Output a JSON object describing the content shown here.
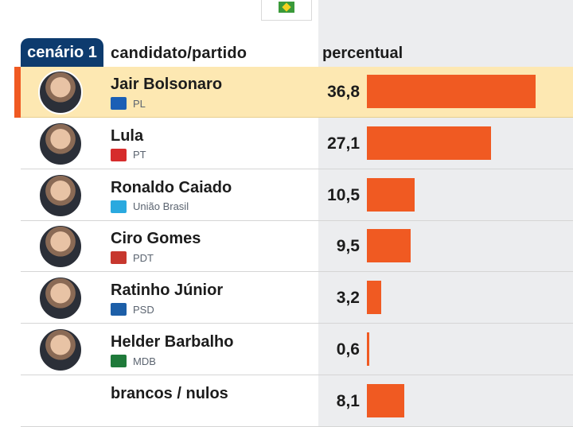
{
  "header": {
    "scenario_tab": "cenário 1",
    "col_candidate": "candidato/partido",
    "col_percent": "percentual"
  },
  "colors": {
    "bar": "#f05a22",
    "highlight": "#fde8b2",
    "tab": "#0d3b6e"
  },
  "chart_data": {
    "type": "bar",
    "orientation": "horizontal",
    "title": "",
    "xlabel": "percentual",
    "ylabel": "candidato/partido",
    "xlim": [
      0,
      40
    ],
    "categories": [
      "Jair Bolsonaro",
      "Lula",
      "Ronaldo Caiado",
      "Ciro Gomes",
      "Ratinho Júnior",
      "Helder Barbalho",
      "brancos / nulos"
    ],
    "values": [
      36.8,
      27.1,
      10.5,
      9.5,
      3.2,
      0.6,
      8.1
    ],
    "value_labels": [
      "36,8",
      "27,1",
      "10,5",
      "9,5",
      "3,2",
      "0,6",
      "8,1"
    ],
    "parties": [
      "PL",
      "PT",
      "União Brasil",
      "PDT",
      "PSD",
      "MDB",
      ""
    ],
    "party_logo_icons": [
      "pl-logo-icon",
      "pt-star-icon",
      "uniao-brasil-logo-icon",
      "pdt-logo-icon",
      "psd-logo-icon",
      "mdb-logo-icon",
      ""
    ],
    "party_colors": [
      "#1b5fb5",
      "#d62c2c",
      "#2aa9df",
      "#c7372e",
      "#1d5fa8",
      "#1f7a3a",
      ""
    ],
    "highlighted_index": 0
  }
}
